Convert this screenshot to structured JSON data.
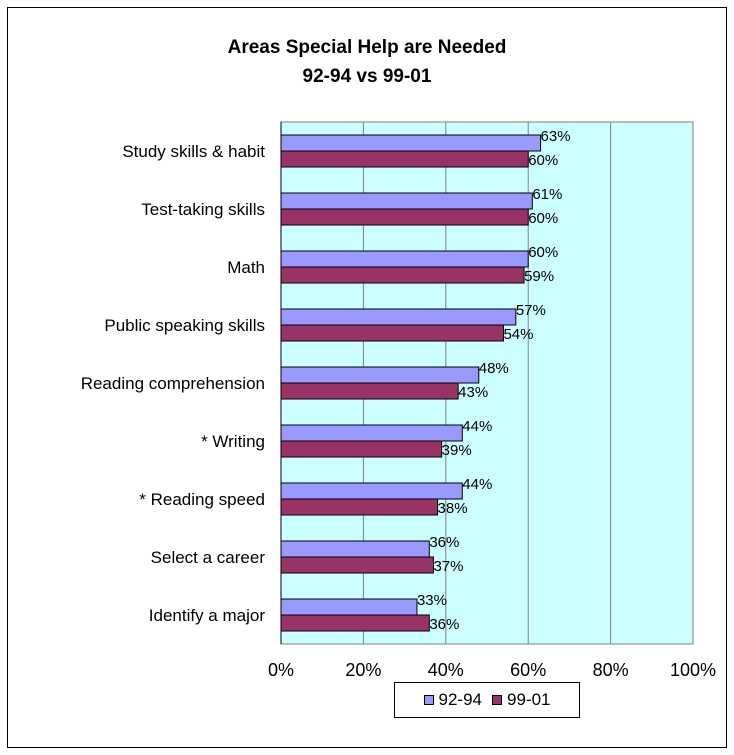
{
  "chart_data": {
    "type": "bar",
    "orientation": "horizontal",
    "title_line1": "Areas Special Help are Needed",
    "title_line2": "92-94 vs 99-01",
    "categories": [
      "Study skills & habit",
      "Test-taking skills",
      "Math",
      "Public speaking skills",
      "Reading comprehension",
      "* Writing",
      "* Reading speed",
      "Select a career",
      "Identify a major"
    ],
    "series": [
      {
        "name": "92-94",
        "values": [
          63,
          61,
          60,
          57,
          48,
          44,
          44,
          36,
          33
        ],
        "color": "#9999ff"
      },
      {
        "name": "99-01",
        "values": [
          60,
          60,
          59,
          54,
          43,
          39,
          38,
          37,
          36
        ],
        "color": "#993366"
      }
    ],
    "data_labels": [
      [
        "63%",
        "61%",
        "60%",
        "57%",
        "48%",
        "44%",
        "44%",
        "36%",
        "33%"
      ],
      [
        "60%",
        "60%",
        "59%",
        "54%",
        "43%",
        "39%",
        "38%",
        "37%",
        "36%"
      ]
    ],
    "xlim": [
      0,
      100
    ],
    "xticks": [
      "0%",
      "20%",
      "40%",
      "60%",
      "80%",
      "100%"
    ],
    "grid": true,
    "plot_background": "#ccffff",
    "legend_position": "bottom"
  }
}
